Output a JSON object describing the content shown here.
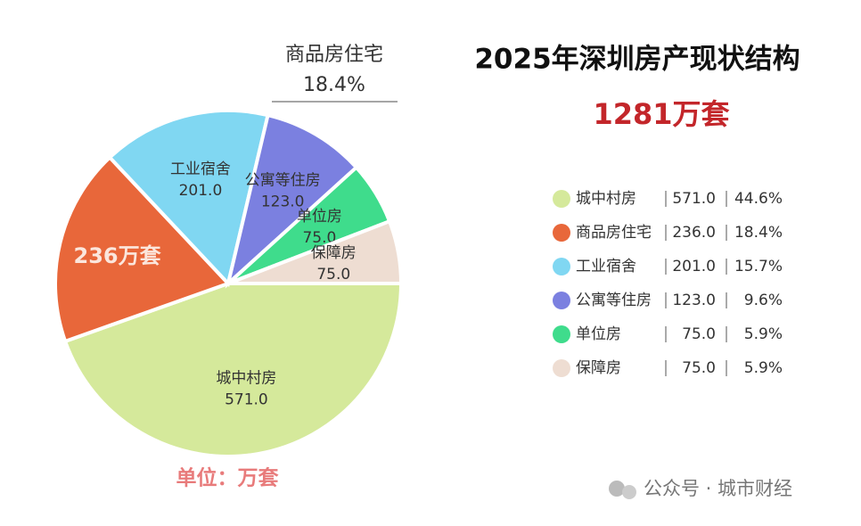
{
  "chart_data": {
    "type": "pie",
    "title": "2025年深圳房产现状结构",
    "subtitle": "1281万套",
    "unit_note": "单位：万套",
    "source": "公众号 · 城市财经",
    "categories": [
      "城中村房",
      "商品房住宅",
      "工业宿舍",
      "公寓等住房",
      "单位房",
      "保障房"
    ],
    "values": [
      571,
      236,
      201,
      123,
      75,
      75
    ],
    "value_labels": [
      "571.0",
      "236.0",
      "201.0",
      "123.0",
      "75.0",
      "75.0"
    ],
    "percents": [
      44.6,
      18.4,
      15.7,
      9.6,
      5.9,
      5.9
    ],
    "percent_labels": [
      "44.6%",
      "18.4%",
      "15.7%",
      "9.6%",
      "5.9%",
      "5.9%"
    ],
    "colors": [
      "#d5e99b",
      "#e8673a",
      "#80d7f2",
      "#7b80e0",
      "#3fdc8c",
      "#eeddd2"
    ],
    "slice_annotation": "236万套"
  }
}
